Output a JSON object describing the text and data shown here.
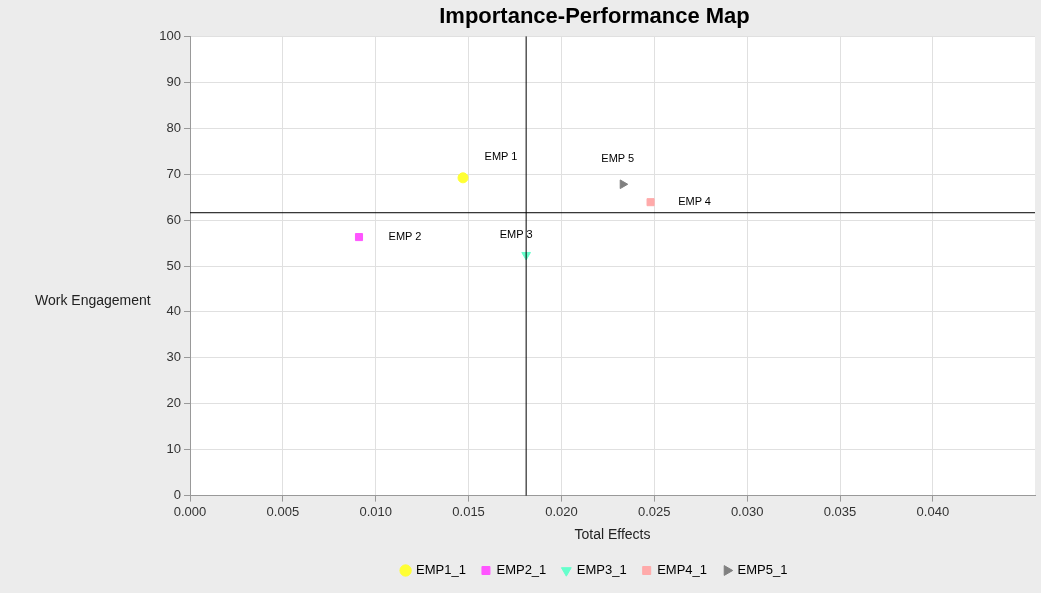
{
  "chart_data": {
    "type": "scatter",
    "title": "Importance-Performance Map",
    "xlabel": "Total Effects",
    "ylabel": "Work Engagement",
    "xlim": [
      0,
      0.0455
    ],
    "xticks": [
      {
        "value": 0,
        "label": "0.000"
      },
      {
        "value": 0.005,
        "label": "0.005"
      },
      {
        "value": 0.01,
        "label": "0.010"
      },
      {
        "value": 0.015,
        "label": "0.015"
      },
      {
        "value": 0.02,
        "label": "0.020"
      },
      {
        "value": 0.025,
        "label": "0.025"
      },
      {
        "value": 0.03,
        "label": "0.030"
      },
      {
        "value": 0.035,
        "label": "0.035"
      },
      {
        "value": 0.04,
        "label": "0.040"
      }
    ],
    "ylim": [
      0,
      100
    ],
    "yticks": [
      0,
      10,
      20,
      30,
      40,
      50,
      60,
      70,
      80,
      90,
      100
    ],
    "grid": true,
    "legend": "bottom",
    "series": [
      {
        "name": "EMP1_1",
        "color": "#ffff33",
        "marker": "circle",
        "x": [
          0.0147
        ],
        "values": [
          69.2
        ]
      },
      {
        "name": "EMP2_1",
        "color": "#ff55ff",
        "marker": "square",
        "x": [
          0.0091
        ],
        "values": [
          56.3
        ]
      },
      {
        "name": "EMP3_1",
        "color": "#66ffcc",
        "marker": "triangle-down",
        "x": [
          0.0181
        ],
        "values": [
          52.4
        ]
      },
      {
        "name": "EMP4_1",
        "color": "#ffaaaa",
        "marker": "square",
        "x": [
          0.0248
        ],
        "values": [
          63.9
        ]
      },
      {
        "name": "EMP5_1",
        "color": "#808080",
        "marker": "triangle-right",
        "x": [
          0.0233
        ],
        "values": [
          67.8
        ]
      }
    ],
    "ref_lines": [
      {
        "axis": "x",
        "value": 0.0181,
        "color": "#000000"
      },
      {
        "axis": "y",
        "value": 61.6,
        "color": "#000000"
      }
    ],
    "annotations": [
      {
        "text": "EMP 1",
        "x": 0.0147,
        "y": 69.2
      },
      {
        "text": "EMP 2",
        "x": 0.0091,
        "y": 56.3
      },
      {
        "text": "EMP 3",
        "x": 0.0181,
        "y": 52.4
      },
      {
        "text": "EMP 4",
        "x": 0.0248,
        "y": 63.9
      },
      {
        "text": "EMP 5",
        "x": 0.0233,
        "y": 67.8
      }
    ]
  }
}
